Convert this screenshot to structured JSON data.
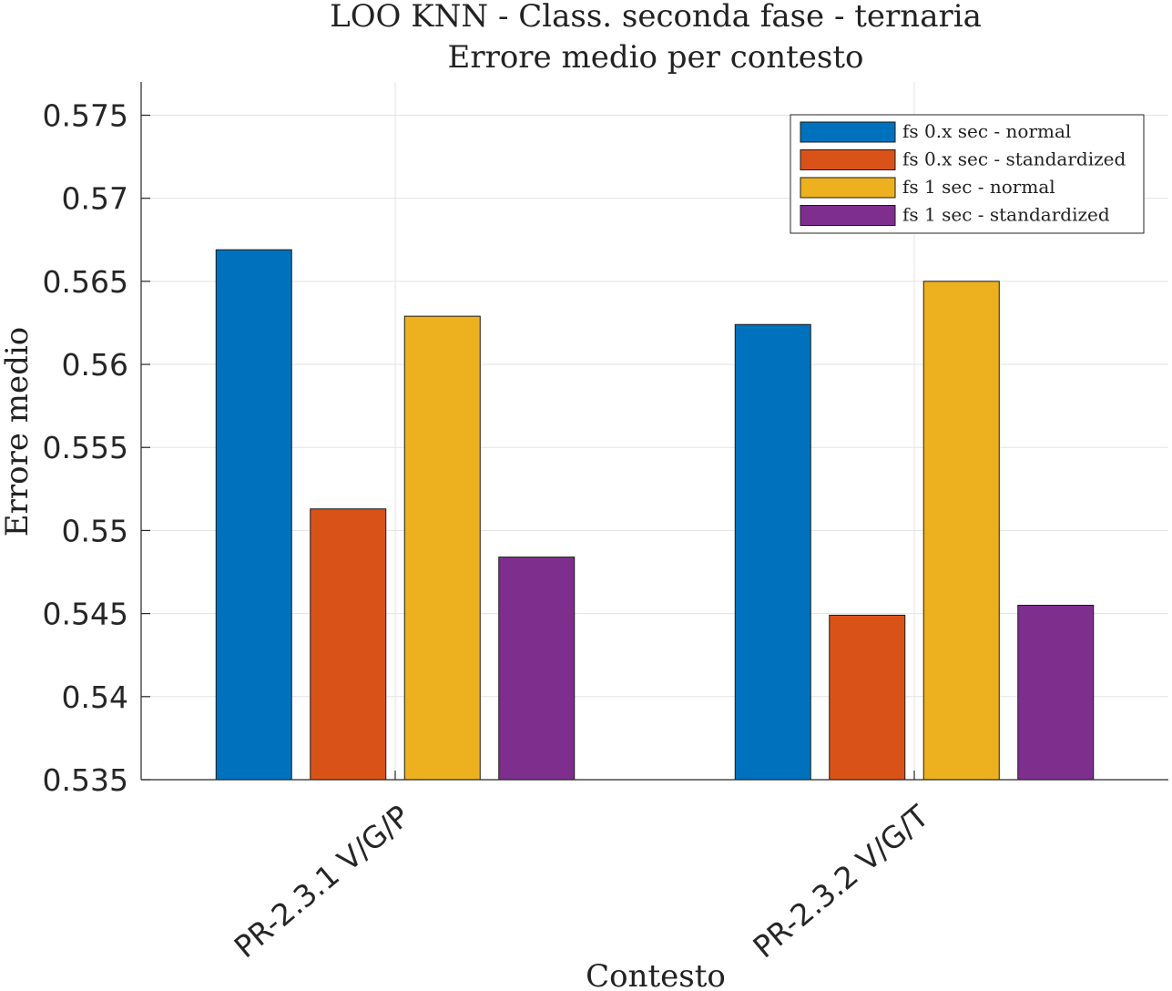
{
  "chart_data": {
    "type": "bar",
    "title": [
      "LOO KNN - Class. seconda fase - ternaria",
      "Errore medio per contesto"
    ],
    "xlabel": "Contesto",
    "ylabel": "Errore medio",
    "categories": [
      "PR-2.3.1 V/G/P",
      "PR-2.3.2 V/G/T"
    ],
    "ylim": [
      0.535,
      0.577
    ],
    "yticks": [
      0.535,
      0.54,
      0.545,
      0.55,
      0.555,
      0.56,
      0.565,
      0.57,
      0.575
    ],
    "ytick_labels": [
      "0.535",
      "0.54",
      "0.545",
      "0.55",
      "0.555",
      "0.56",
      "0.565",
      "0.57",
      "0.575"
    ],
    "grid": true,
    "legend_position": "top-right",
    "series": [
      {
        "name": "fs 0.x sec - normal",
        "color": "#0072BD",
        "values": [
          0.5669,
          0.5624
        ]
      },
      {
        "name": "fs 0.x sec - standardized",
        "color": "#D95319",
        "values": [
          0.5513,
          0.5449
        ]
      },
      {
        "name": "fs 1 sec - normal",
        "color": "#EDB120",
        "values": [
          0.5629,
          0.565
        ]
      },
      {
        "name": "fs 1 sec - standardized",
        "color": "#7E2F8E",
        "values": [
          0.5484,
          0.5455
        ]
      }
    ]
  }
}
